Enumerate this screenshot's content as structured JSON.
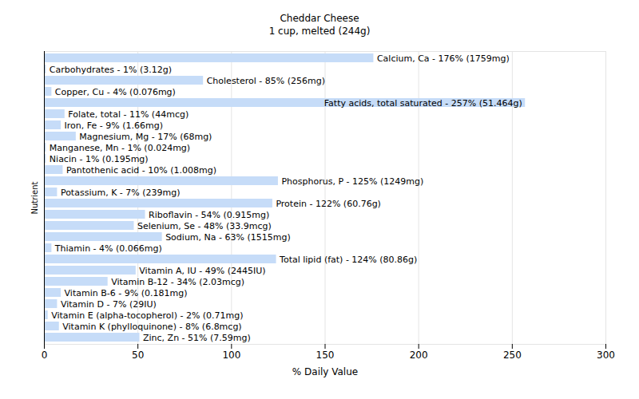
{
  "chart_data": {
    "type": "bar",
    "title": "Cheddar Cheese",
    "subtitle": "1 cup, melted (244g)",
    "x_label": "% Daily Value",
    "y_label": "Nutrient",
    "orientation": "horizontal",
    "color": "#c6dcf8",
    "grid": true,
    "data_labels": true,
    "tick_labels": "x",
    "categories": [
      "Calcium, Ca",
      "Carbohydrates",
      "Cholesterol",
      "Copper, Cu",
      "Fatty acids, total saturated",
      "Folate, total",
      "Iron, Fe",
      "Magnesium, Mg",
      "Manganese, Mn",
      "Niacin",
      "Pantothenic acid",
      "Phosphorus, P",
      "Potassium, K",
      "Protein",
      "Riboflavin",
      "Selenium, Se",
      "Sodium, Na",
      "Thiamin",
      "Total lipid (fat)",
      "Vitamin A, IU",
      "Vitamin B-12",
      "Vitamin B-6",
      "Vitamin D",
      "Vitamin E (alpha-tocopherol)",
      "Vitamin K (phylloquinone)",
      "Zinc, Zn"
    ],
    "values": [
      176,
      1,
      85,
      4,
      257,
      11,
      9,
      17,
      1,
      1,
      10,
      125,
      7,
      122,
      54,
      48,
      63,
      4,
      124,
      49,
      34,
      9,
      7,
      2,
      8,
      51
    ],
    "value_labels": [
      "Calcium, Ca - 176% (1759mg)",
      "Carbohydrates - 1% (3.12g)",
      "Cholesterol - 85% (256mg)",
      "Copper, Cu - 4% (0.076mg)",
      "Fatty acids, total saturated - 257% (51.464g)",
      "Folate, total - 11% (44mcg)",
      "Iron, Fe - 9% (1.66mg)",
      "Magnesium, Mg - 17% (68mg)",
      "Manganese, Mn - 1% (0.024mg)",
      "Niacin - 1% (0.195mg)",
      "Pantothenic acid - 10% (1.008mg)",
      "Phosphorus, P - 125% (1249mg)",
      "Potassium, K - 7% (239mg)",
      "Protein - 122% (60.76g)",
      "Riboflavin - 54% (0.915mg)",
      "Selenium, Se - 48% (33.9mcg)",
      "Sodium, Na - 63% (1515mg)",
      "Thiamin - 4% (0.066mg)",
      "Total lipid (fat) - 124% (80.86g)",
      "Vitamin A, IU - 49% (2445IU)",
      "Vitamin B-12 - 34% (2.03mcg)",
      "Vitamin B-6 - 9% (0.181mg)",
      "Vitamin D - 7% (29IU)",
      "Vitamin E (alpha-tocopherol) - 2% (0.71mg)",
      "Vitamin K (phylloquinone) - 8% (6.8mcg)",
      "Zinc, Zn - 51% (7.59mg)"
    ],
    "xlim": [
      0,
      300
    ],
    "xticks": [
      0,
      50,
      100,
      150,
      200,
      250,
      300
    ]
  }
}
